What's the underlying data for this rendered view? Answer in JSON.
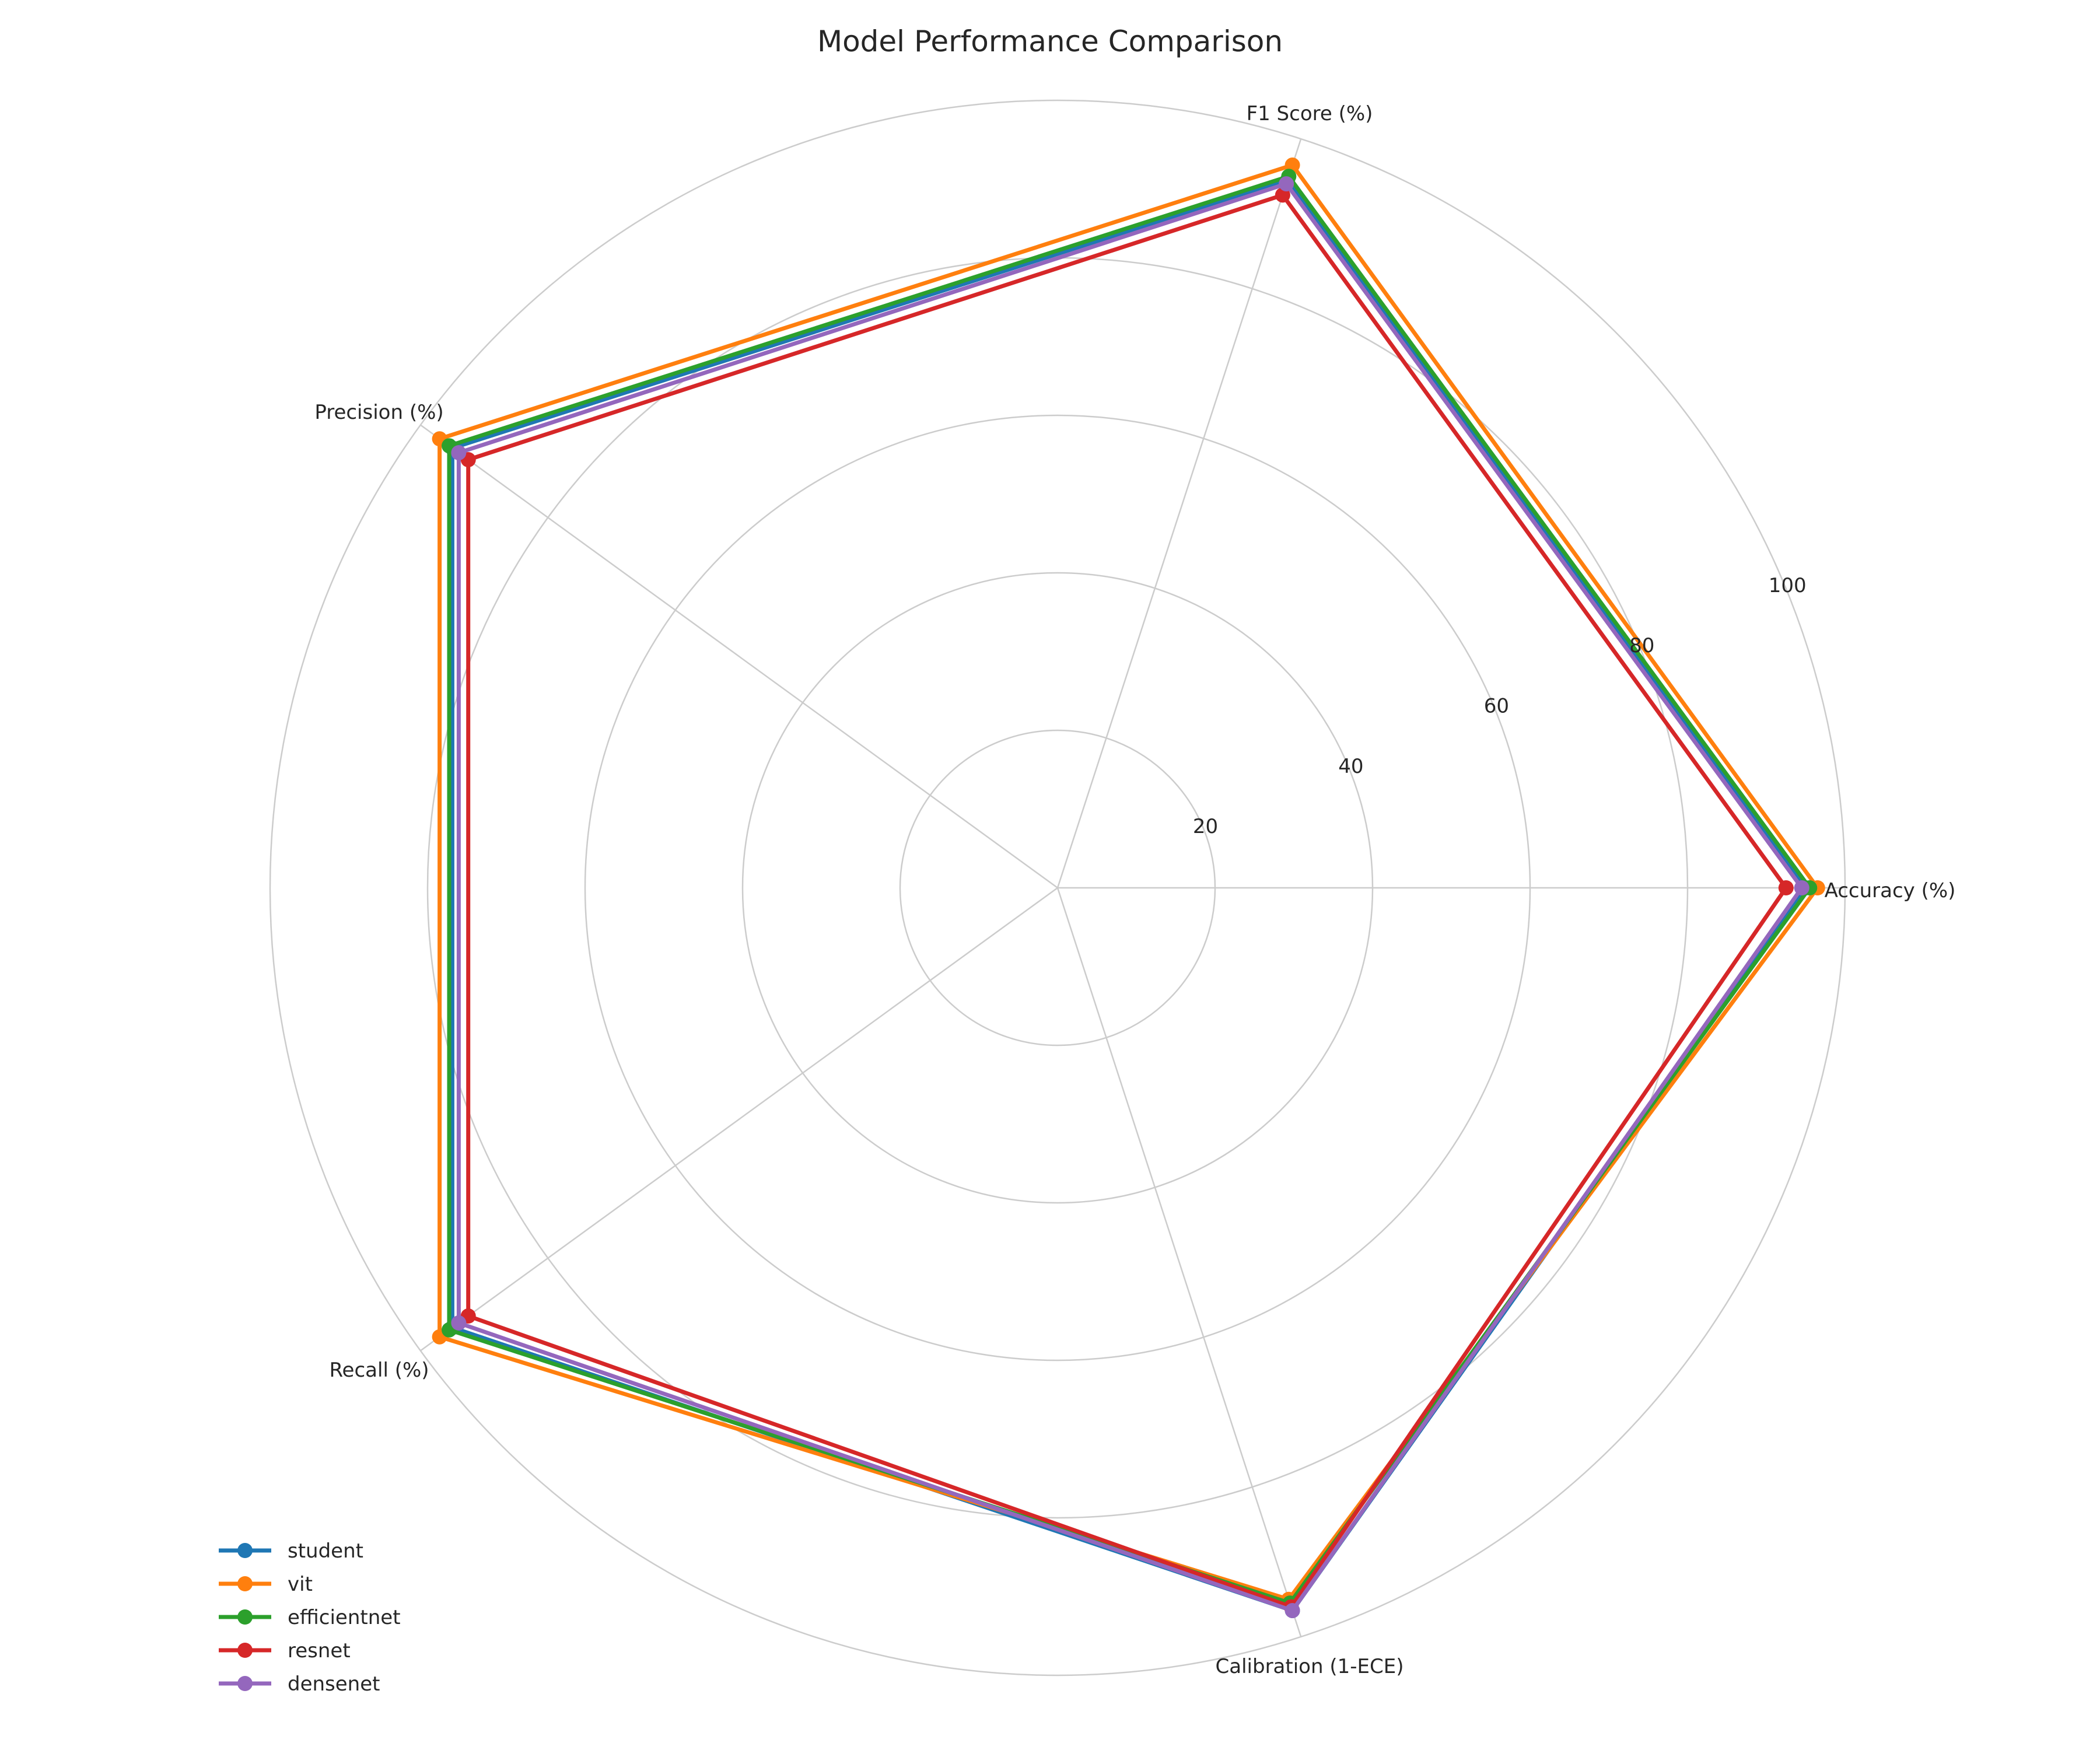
{
  "chart_data": {
    "type": "radar",
    "title": "Model Performance Comparison",
    "axes": [
      "Accuracy (%)",
      "F1 Score (%)",
      "Precision (%)",
      "Recall (%)",
      "Calibration (1-ECE)"
    ],
    "rlim": [
      0,
      100
    ],
    "r_ticks": [
      20,
      40,
      60,
      80,
      100
    ],
    "grid": true,
    "legend_position": "lower-left",
    "series": [
      {
        "name": "student",
        "color": "#1f77b4",
        "values": [
          95,
          94.5,
          95,
          95,
          96.5
        ]
      },
      {
        "name": "vit",
        "color": "#ff7f0e",
        "values": [
          96.5,
          96.5,
          97,
          97,
          95
        ]
      },
      {
        "name": "efficientnet",
        "color": "#2ca02c",
        "values": [
          95.5,
          95,
          95.5,
          95.5,
          95.5
        ]
      },
      {
        "name": "resnet",
        "color": "#d62728",
        "values": [
          92.5,
          92.5,
          92.5,
          92.5,
          96
        ]
      },
      {
        "name": "densenet",
        "color": "#9467bd",
        "values": [
          94.5,
          94,
          94,
          94,
          96.5
        ]
      }
    ]
  }
}
